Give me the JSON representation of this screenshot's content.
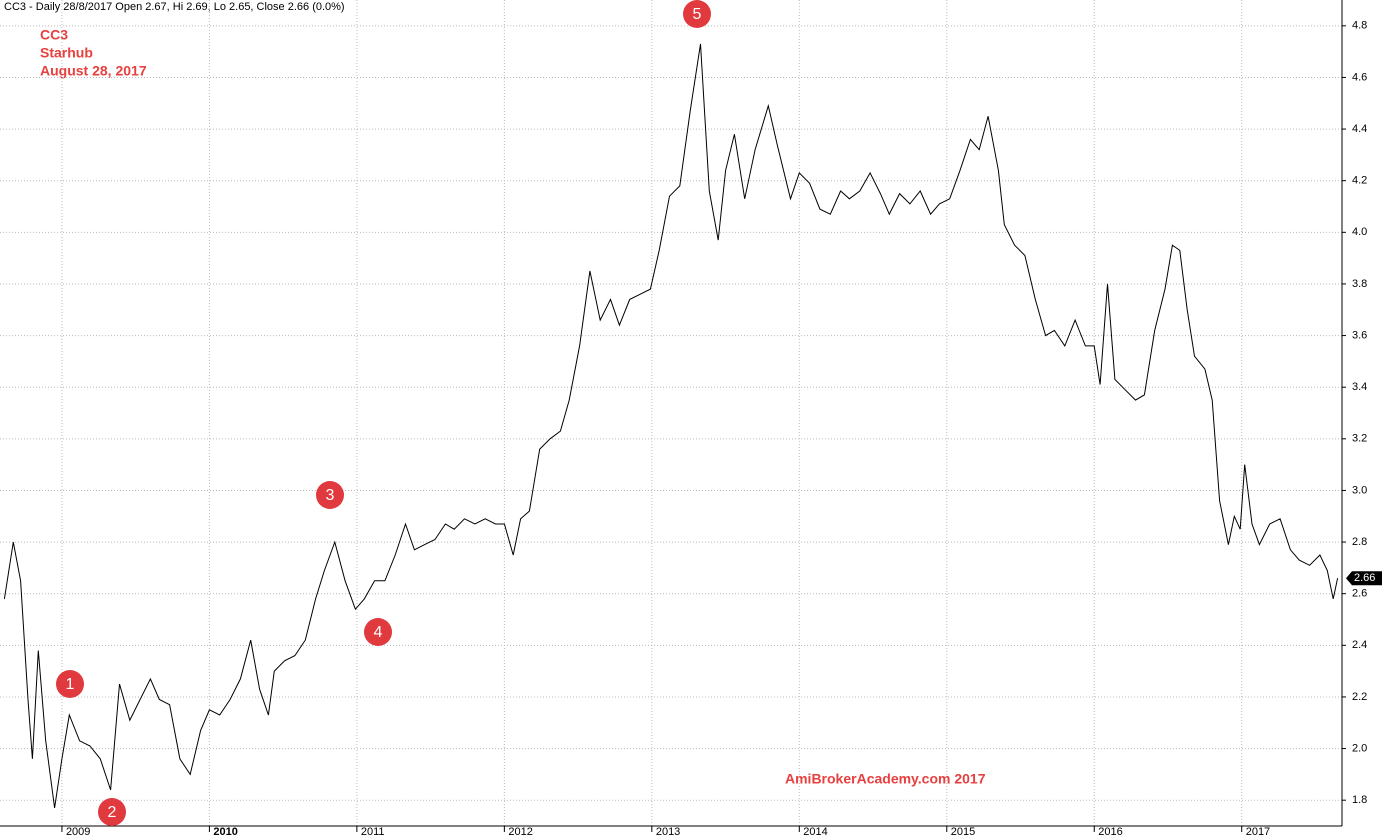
{
  "chart_data": {
    "type": "line",
    "title": "CC3 - Daily 28/8/2017 Open 2.67, Hi 2.69, Lo 2.65, Close 2.66 (0.0%)",
    "subtitle_lines": [
      "CC3",
      "Starhub",
      "August 28, 2017"
    ],
    "watermark": "AmiBrokerAcademy.com  2017",
    "annotations": [
      "1",
      "2",
      "3",
      "4",
      "5"
    ],
    "xlim": [
      2008.58,
      2017.68
    ],
    "ylim": [
      1.7,
      4.9
    ],
    "xticks": [
      2009,
      2010,
      2011,
      2012,
      2013,
      2014,
      2015,
      2016,
      2017
    ],
    "yticks": [
      1.8,
      {
        "value": 2,
        "label": "2.0"
      },
      2.2,
      2.4,
      2.6,
      2.8,
      {
        "value": 3,
        "label": "3.0"
      },
      3.2,
      3.4,
      3.6,
      3.8,
      {
        "value": 4,
        "label": "4.0"
      },
      4.2,
      4.4,
      4.6,
      4.8
    ],
    "grid": true,
    "series": [
      {
        "name": "CC3",
        "color": "#000000",
        "x": [
          2008.61,
          2008.67,
          2008.72,
          2008.77,
          2008.8,
          2008.84,
          2008.89,
          2008.95,
          2009.0,
          2009.05,
          2009.12,
          2009.19,
          2009.26,
          2009.33,
          2009.39,
          2009.46,
          2009.53,
          2009.6,
          2009.66,
          2009.73,
          2009.8,
          2009.87,
          2009.94,
          2010.0,
          2010.07,
          2010.14,
          2010.21,
          2010.28,
          2010.34,
          2010.4,
          2010.44,
          2010.51,
          2010.58,
          2010.65,
          2010.72,
          2010.78,
          2010.85,
          2010.92,
          2010.99,
          2011.05,
          2011.12,
          2011.19,
          2011.26,
          2011.33,
          2011.39,
          2011.46,
          2011.53,
          2011.6,
          2011.66,
          2011.73,
          2011.8,
          2011.87,
          2011.94,
          2012.0,
          2012.06,
          2012.11,
          2012.17,
          2012.24,
          2012.31,
          2012.38,
          2012.44,
          2012.51,
          2012.58,
          2012.65,
          2012.72,
          2012.78,
          2012.85,
          2012.92,
          2012.99,
          2013.05,
          2013.12,
          2013.19,
          2013.26,
          2013.33,
          2013.39,
          2013.45,
          2013.5,
          2013.56,
          2013.63,
          2013.7,
          2013.79,
          2013.85,
          2013.94,
          2014.0,
          2014.07,
          2014.14,
          2014.21,
          2014.28,
          2014.34,
          2014.41,
          2014.48,
          2014.55,
          2014.61,
          2014.68,
          2014.75,
          2014.82,
          2014.89,
          2014.95,
          2015.02,
          2015.09,
          2015.16,
          2015.22,
          2015.28,
          2015.35,
          2015.39,
          2015.46,
          2015.53,
          2015.6,
          2015.67,
          2015.73,
          2015.8,
          2015.87,
          2015.94,
          2016.0,
          2016.04,
          2016.09,
          2016.14,
          2016.21,
          2016.28,
          2016.34,
          2016.41,
          2016.48,
          2016.53,
          2016.58,
          2016.63,
          2016.68,
          2016.75,
          2016.8,
          2016.85,
          2016.91,
          2016.95,
          2016.99,
          2017.02,
          2017.07,
          2017.12,
          2017.19,
          2017.26,
          2017.33,
          2017.39,
          2017.46,
          2017.53,
          2017.58,
          2017.62,
          2017.65
        ],
        "values": [
          2.58,
          2.8,
          2.65,
          2.19,
          1.96,
          2.38,
          2.03,
          1.77,
          1.96,
          2.13,
          2.03,
          2.01,
          1.96,
          1.84,
          2.25,
          2.11,
          2.19,
          2.27,
          2.19,
          2.17,
          1.96,
          1.9,
          2.07,
          2.15,
          2.13,
          2.19,
          2.27,
          2.42,
          2.23,
          2.13,
          2.3,
          2.34,
          2.36,
          2.42,
          2.58,
          2.69,
          2.8,
          2.65,
          2.54,
          2.58,
          2.65,
          2.65,
          2.75,
          2.87,
          2.77,
          2.79,
          2.81,
          2.87,
          2.85,
          2.89,
          2.87,
          2.89,
          2.87,
          2.87,
          2.75,
          2.89,
          2.92,
          3.16,
          3.2,
          3.23,
          3.35,
          3.56,
          3.85,
          3.66,
          3.74,
          3.64,
          3.74,
          3.76,
          3.78,
          3.93,
          4.14,
          4.18,
          4.47,
          4.73,
          4.16,
          3.97,
          4.24,
          4.38,
          4.13,
          4.32,
          4.49,
          4.34,
          4.13,
          4.23,
          4.19,
          4.09,
          4.07,
          4.16,
          4.13,
          4.16,
          4.23,
          4.15,
          4.07,
          4.15,
          4.11,
          4.16,
          4.07,
          4.11,
          4.13,
          4.24,
          4.36,
          4.32,
          4.45,
          4.24,
          4.03,
          3.95,
          3.91,
          3.74,
          3.6,
          3.62,
          3.56,
          3.66,
          3.56,
          3.56,
          3.41,
          3.8,
          3.43,
          3.39,
          3.35,
          3.37,
          3.62,
          3.78,
          3.95,
          3.93,
          3.7,
          3.52,
          3.47,
          3.35,
          2.96,
          2.79,
          2.9,
          2.85,
          3.1,
          2.87,
          2.79,
          2.87,
          2.89,
          2.77,
          2.73,
          2.71,
          2.75,
          2.69,
          2.58,
          2.66
        ]
      }
    ]
  }
}
